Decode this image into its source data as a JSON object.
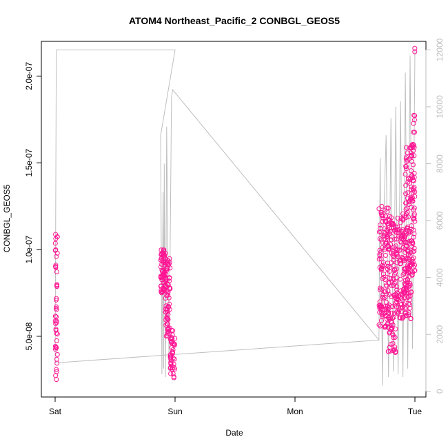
{
  "chart_data": {
    "type": "scatter",
    "title": "ATOM4 Northeast_Pacific_2 CONBGL_GEOS5",
    "xlabel": "Date",
    "ylabel": "CONBGL_GEOS5",
    "x_ticks": [
      "Sat",
      "Sun",
      "Mon",
      "Tue"
    ],
    "y_ticks": [
      "5.0e-08",
      "1.0e-07",
      "1.5e-07",
      "2.0e-07"
    ],
    "y_tick_values": [
      5e-08,
      1e-07,
      1.5e-07,
      2e-07
    ],
    "ylim": [
      1.5e-08,
      2.2e-07
    ],
    "y2_ticks": [
      "0",
      "2000",
      "4000",
      "6000",
      "8000",
      "10000",
      "12000"
    ],
    "y2_tick_values": [
      0,
      2000,
      4000,
      6000,
      8000,
      10000,
      12000
    ],
    "y2lim": [
      -200,
      12300
    ],
    "xlim_days": [
      -0.05,
      3.05
    ],
    "grid": false,
    "series": [
      {
        "kind": "points",
        "color": "#ff1493",
        "segments": [
          {
            "x": [
              0.0,
              0.02
            ],
            "y_min": 2.3e-08,
            "y_max": 1.1e-07,
            "n": 45
          },
          {
            "x": [
              0.88,
              0.93
            ],
            "y_min": 7.5e-08,
            "y_max": 1e-07,
            "n": 70
          },
          {
            "x": [
              0.92,
              0.96
            ],
            "y_min": 5e-08,
            "y_max": 9.5e-08,
            "n": 60
          },
          {
            "x": [
              0.96,
              1.0
            ],
            "y_min": 2.4e-08,
            "y_max": 5.5e-08,
            "n": 45
          },
          {
            "x": [
              2.7,
              2.78
            ],
            "y_min": 5.5e-08,
            "y_max": 1.25e-07,
            "n": 110
          },
          {
            "x": [
              2.77,
              2.84
            ],
            "y_min": 4e-08,
            "y_max": 1.2e-07,
            "n": 110
          },
          {
            "x": [
              2.84,
              2.92
            ],
            "y_min": 6e-08,
            "y_max": 1.22e-07,
            "n": 110
          },
          {
            "x": [
              2.92,
              2.97
            ],
            "y_min": 6e-08,
            "y_max": 1.6e-07,
            "n": 120
          },
          {
            "x": [
              2.97,
              3.0
            ],
            "y_min": 8.5e-08,
            "y_max": 1.8e-07,
            "n": 70
          }
        ],
        "extra_points": [
          {
            "x": 2.999,
            "y": 2.16e-07
          },
          {
            "x": 2.999,
            "y": 2.14e-07
          }
        ]
      },
      {
        "kind": "line",
        "color": "#bebebe",
        "axis": "right",
        "points": [
          [
            0.0,
            1000
          ],
          [
            0.01,
            12000
          ],
          [
            1.0,
            12000
          ],
          [
            0.88,
            9000
          ],
          [
            0.89,
            600
          ],
          [
            0.9,
            7000
          ],
          [
            0.905,
            800
          ],
          [
            0.91,
            8000
          ],
          [
            0.92,
            500
          ],
          [
            0.93,
            9300
          ],
          [
            0.95,
            700
          ],
          [
            0.97,
            10300
          ],
          [
            0.98,
            10600
          ],
          [
            2.7,
            1800
          ],
          [
            2.71,
            8200
          ],
          [
            2.73,
            200
          ],
          [
            2.74,
            6000
          ],
          [
            2.76,
            9000
          ],
          [
            2.78,
            500
          ],
          [
            2.8,
            9600
          ],
          [
            2.82,
            700
          ],
          [
            2.84,
            10000
          ],
          [
            2.86,
            600
          ],
          [
            2.88,
            10200
          ],
          [
            2.9,
            500
          ],
          [
            2.92,
            11200
          ],
          [
            2.94,
            800
          ],
          [
            2.96,
            11800
          ],
          [
            2.98,
            1500
          ],
          [
            3.0,
            12000
          ]
        ],
        "tail_line": [
          [
            0.0,
            1000
          ],
          [
            2.7,
            1800
          ]
        ]
      }
    ]
  }
}
